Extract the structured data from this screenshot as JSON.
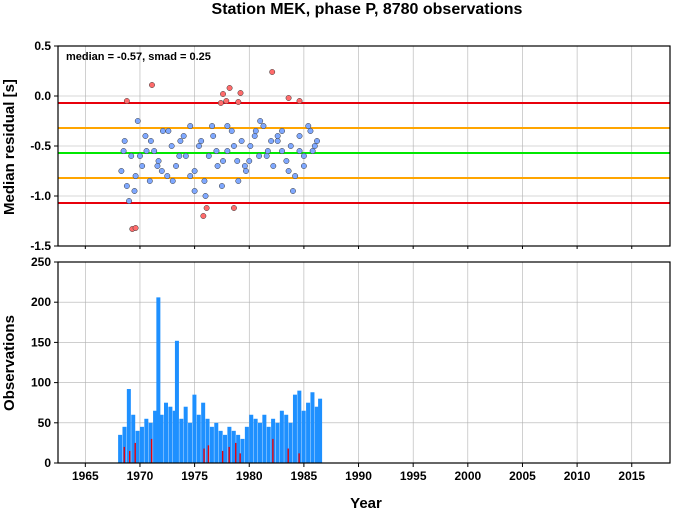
{
  "title": "Station MEK, phase P, 8780 observations",
  "chart_data": [
    {
      "type": "scatter",
      "ylabel": "Median residual [s]",
      "ylim": [
        -1.5,
        0.5
      ],
      "yticks": [
        "-1.5",
        "-1.0",
        "-0.5",
        "0.0",
        "0.5"
      ],
      "xlim": [
        1962.5,
        2018.5
      ],
      "grid": true,
      "annotation": "median = -0.57, smad = 0.25",
      "reference_lines": [
        {
          "y": -0.07,
          "color": "#e8000b"
        },
        {
          "y": -0.32,
          "color": "#ffa500"
        },
        {
          "y": -0.57,
          "color": "#00e800"
        },
        {
          "y": -0.82,
          "color": "#ffa500"
        },
        {
          "y": -1.07,
          "color": "#e8000b"
        }
      ],
      "colors": {
        "inlier": "#7fa8ff",
        "outlier": "#ff6b6b"
      },
      "series": [
        {
          "role": "outliers",
          "x": [
            1968.8,
            1969.3,
            1969.6,
            1971.1,
            1975.8,
            1976.1,
            1977.4,
            1977.6,
            1977.9,
            1978.2,
            1978.6,
            1979.0,
            1979.2,
            1982.1,
            1983.6,
            1984.6
          ],
          "y": [
            -0.05,
            -1.33,
            -1.32,
            0.11,
            -1.2,
            -1.12,
            -0.07,
            0.02,
            -0.05,
            0.08,
            -1.12,
            -0.06,
            0.03,
            0.24,
            -0.02,
            -0.05
          ]
        },
        {
          "role": "inliers",
          "x": [
            1968.3,
            1968.5,
            1968.8,
            1969.2,
            1969.5,
            1969.8,
            1970.2,
            1970.5,
            1970.9,
            1971.3,
            1971.7,
            1972.1,
            1972.5,
            1972.9,
            1973.3,
            1973.7,
            1974.2,
            1974.6,
            1975.0,
            1975.4,
            1975.9,
            1976.3,
            1976.7,
            1977.1,
            1977.5,
            1978.0,
            1978.4,
            1978.9,
            1979.3,
            1979.7,
            1980.1,
            1980.5,
            1980.9,
            1981.3,
            1981.7,
            1982.2,
            1982.6,
            1983.0,
            1983.4,
            1983.8,
            1984.2,
            1984.6,
            1985.0,
            1985.4,
            1985.8,
            1986.2,
            1969.0,
            1970.0,
            1971.0,
            1972.0,
            1973.0,
            1974.0,
            1975.0,
            1976.0,
            1977.0,
            1978.0,
            1979.0,
            1980.0,
            1981.0,
            1982.0,
            1983.0,
            1984.0,
            1985.0,
            1986.0,
            1968.6,
            1969.6,
            1970.6,
            1971.6,
            1972.6,
            1973.6,
            1974.6,
            1975.6,
            1976.6,
            1977.6,
            1978.6,
            1979.6,
            1980.6,
            1981.6,
            1982.6,
            1983.6,
            1984.6,
            1985.6
          ],
          "y": [
            -0.75,
            -0.55,
            -0.9,
            -0.6,
            -0.95,
            -0.25,
            -0.7,
            -0.4,
            -0.85,
            -0.55,
            -0.65,
            -0.35,
            -0.8,
            -0.5,
            -0.7,
            -0.45,
            -0.6,
            -0.3,
            -0.75,
            -0.5,
            -0.85,
            -0.6,
            -0.4,
            -0.7,
            -0.9,
            -0.55,
            -0.35,
            -0.65,
            -0.45,
            -0.75,
            -0.5,
            -0.4,
            -0.6,
            -0.3,
            -0.55,
            -0.7,
            -0.45,
            -0.35,
            -0.65,
            -0.5,
            -0.8,
            -0.4,
            -0.6,
            -0.3,
            -0.55,
            -0.45,
            -1.05,
            -0.6,
            -0.45,
            -0.75,
            -0.85,
            -0.4,
            -0.95,
            -1.0,
            -0.55,
            -0.3,
            -0.85,
            -0.65,
            -0.25,
            -0.45,
            -0.55,
            -0.95,
            -0.7,
            -0.5,
            -0.45,
            -0.8,
            -0.55,
            -0.7,
            -0.35,
            -0.6,
            -0.8,
            -0.45,
            -0.3,
            -0.65,
            -0.5,
            -0.7,
            -0.35,
            -0.6,
            -0.4,
            -0.75,
            -0.55,
            -0.35
          ]
        }
      ]
    },
    {
      "type": "bar",
      "xlabel": "Year",
      "ylabel": "Observations",
      "ylim": [
        0,
        250
      ],
      "yticks": [
        "0",
        "50",
        "100",
        "150",
        "200",
        "250"
      ],
      "xlim": [
        1962.5,
        2018.5
      ],
      "xticks": [
        "1965",
        "1970",
        "1975",
        "1980",
        "1985",
        "1990",
        "1995",
        "2000",
        "2005",
        "2010",
        "2015"
      ],
      "grid": true,
      "colors": {
        "bar": "#1e90ff",
        "outlier_bar": "#e8000b"
      },
      "counts_x": [
        1968.0,
        1968.4,
        1968.8,
        1969.2,
        1969.6,
        1970.0,
        1970.4,
        1970.8,
        1971.2,
        1971.5,
        1971.8,
        1972.2,
        1972.6,
        1973.0,
        1973.2,
        1973.6,
        1974.0,
        1974.4,
        1974.8,
        1975.2,
        1975.6,
        1976.0,
        1976.4,
        1976.8,
        1977.2,
        1977.6,
        1978.0,
        1978.4,
        1978.8,
        1979.2,
        1979.6,
        1980.0,
        1980.4,
        1980.8,
        1981.2,
        1981.6,
        1982.0,
        1982.4,
        1982.8,
        1983.2,
        1983.6,
        1984.0,
        1984.4,
        1984.8,
        1985.2,
        1985.6,
        1986.0,
        1986.3
      ],
      "counts_y": [
        35,
        45,
        92,
        60,
        40,
        45,
        55,
        50,
        65,
        206,
        60,
        75,
        70,
        65,
        152,
        55,
        70,
        50,
        85,
        60,
        75,
        55,
        45,
        50,
        40,
        35,
        45,
        40,
        35,
        30,
        45,
        60,
        55,
        50,
        60,
        45,
        55,
        50,
        65,
        60,
        50,
        85,
        90,
        65,
        75,
        88,
        70,
        80
      ],
      "outlier_x": [
        1968.5,
        1969.0,
        1969.5,
        1971.0,
        1975.8,
        1976.2,
        1977.5,
        1978.1,
        1978.7,
        1979.1,
        1982.1,
        1983.5,
        1984.5
      ],
      "outlier_y": [
        20,
        15,
        25,
        30,
        18,
        22,
        15,
        20,
        25,
        12,
        30,
        18,
        12
      ]
    }
  ]
}
